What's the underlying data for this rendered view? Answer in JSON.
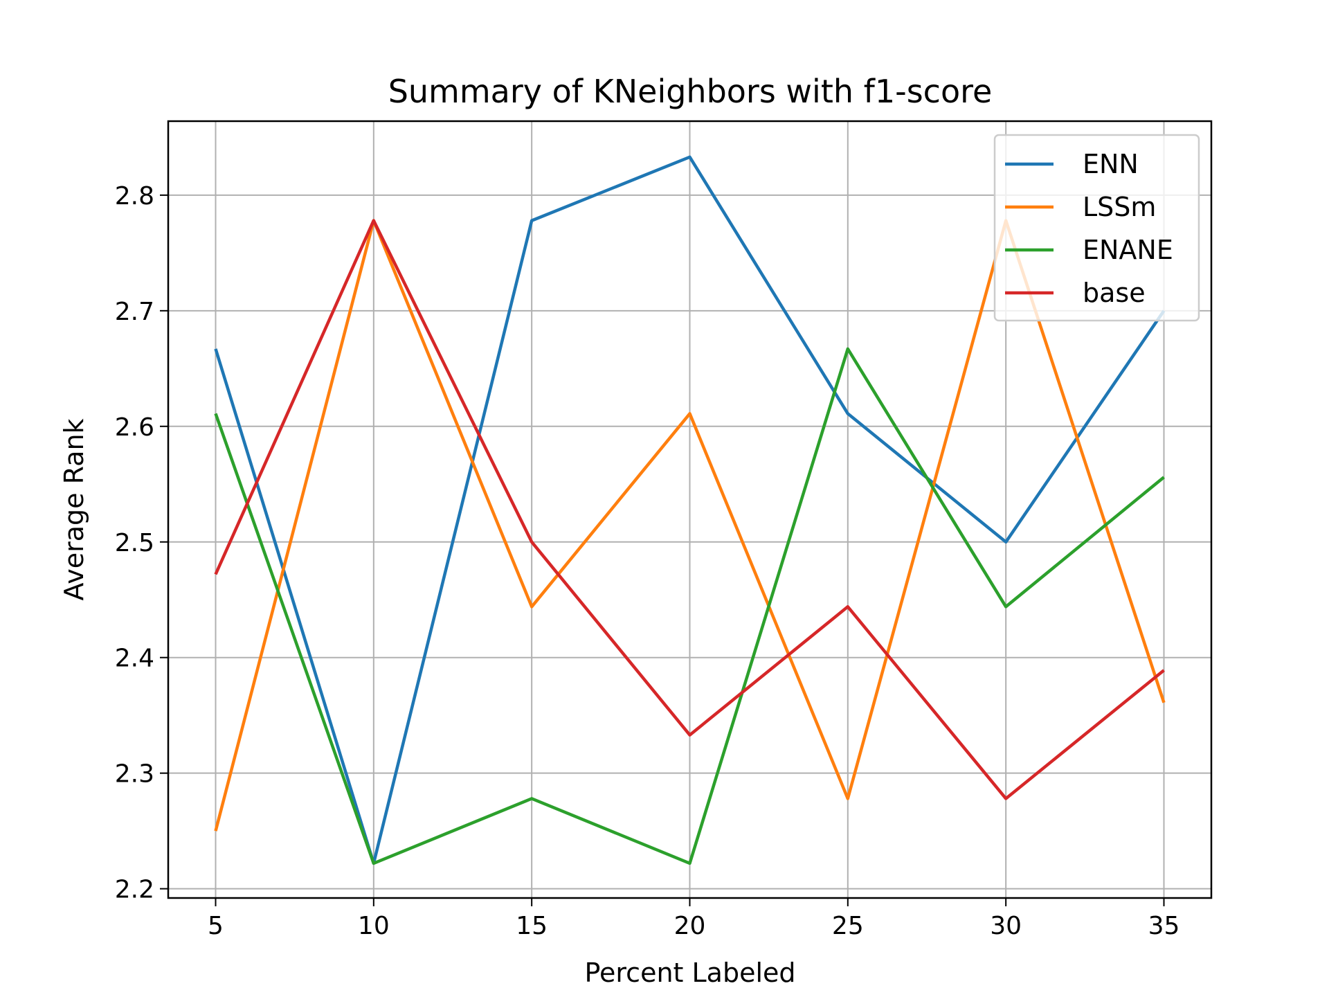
{
  "chart_data": {
    "type": "line",
    "title": "Summary of KNeighbors with f1-score",
    "xlabel": "Percent Labeled",
    "ylabel": "Average Rank",
    "x": [
      5,
      10,
      15,
      20,
      25,
      30,
      35
    ],
    "xticks": [
      "5",
      "10",
      "15",
      "20",
      "25",
      "30",
      "35"
    ],
    "yticks": [
      "2.2",
      "2.3",
      "2.4",
      "2.5",
      "2.6",
      "2.7",
      "2.8"
    ],
    "ytick_values": [
      2.2,
      2.3,
      2.4,
      2.5,
      2.6,
      2.7,
      2.8
    ],
    "xlim": [
      3.5,
      36.5
    ],
    "ylim": [
      2.192,
      2.864
    ],
    "grid": true,
    "legend_position": "top-right",
    "series": [
      {
        "name": "ENN",
        "color": "#1f77b4",
        "values": [
          2.667,
          2.222,
          2.778,
          2.833,
          2.611,
          2.5,
          2.7
        ]
      },
      {
        "name": "LSSm",
        "color": "#ff7f0e",
        "values": [
          2.25,
          2.778,
          2.444,
          2.611,
          2.278,
          2.778,
          2.361
        ]
      },
      {
        "name": "ENANE",
        "color": "#2ca02c",
        "values": [
          2.611,
          2.222,
          2.278,
          2.222,
          2.667,
          2.444,
          2.556
        ]
      },
      {
        "name": "base",
        "color": "#d62728",
        "values": [
          2.472,
          2.778,
          2.5,
          2.333,
          2.444,
          2.278,
          2.389
        ]
      }
    ]
  }
}
